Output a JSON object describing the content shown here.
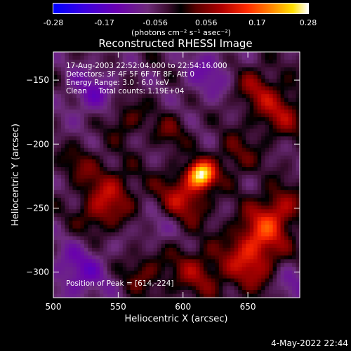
{
  "chart_data": {
    "type": "heatmap",
    "title": "Reconstructed RHESSI Image",
    "xlabel": "Heliocentric X (arcsec)",
    "ylabel": "Heliocentric Y (arcsec)",
    "xlim": [
      500,
      690
    ],
    "ylim": [
      -320,
      -128
    ],
    "x_ticks": [
      "500",
      "550",
      "600",
      "650"
    ],
    "y_ticks": [
      "-150",
      "-200",
      "-250",
      "-300"
    ],
    "colorbar": {
      "ticks": [
        "-0.28",
        "-0.17",
        "-0.056",
        "0.056",
        "0.17",
        "0.28"
      ],
      "range": [
        -0.28,
        0.28
      ],
      "unit_label": "(photons cm⁻² s⁻¹ asec⁻²)"
    },
    "annotations": [
      "17-Aug-2003 22:52:04.000 to 22:54:16.000",
      "Detectors: 3F 4F 5F 6F 7F 8F, Att 0",
      "Energy Range: 3.0 - 6.0 keV",
      "Clean     Total counts: 1.19E+04"
    ],
    "peak_label": "Position of Peak = [614,-224]",
    "peak": {
      "x": 614,
      "y": -224,
      "value": 0.28
    },
    "sources": [
      {
        "x": 614,
        "y": -224,
        "v": 0.28,
        "s": 7
      },
      {
        "x": 600,
        "y": -242,
        "v": 0.12,
        "s": 14
      },
      {
        "x": 545,
        "y": -235,
        "v": 0.09,
        "s": 14
      },
      {
        "x": 535,
        "y": -255,
        "v": 0.08,
        "s": 12
      },
      {
        "x": 520,
        "y": -215,
        "v": 0.06,
        "s": 10
      },
      {
        "x": 660,
        "y": -270,
        "v": 0.13,
        "s": 14
      },
      {
        "x": 675,
        "y": -250,
        "v": 0.1,
        "s": 12
      },
      {
        "x": 650,
        "y": -295,
        "v": 0.11,
        "s": 15
      },
      {
        "x": 610,
        "y": -300,
        "v": 0.09,
        "s": 14
      },
      {
        "x": 570,
        "y": -300,
        "v": 0.07,
        "s": 12
      },
      {
        "x": 675,
        "y": -175,
        "v": 0.1,
        "s": 14
      },
      {
        "x": 655,
        "y": -155,
        "v": 0.08,
        "s": 12
      },
      {
        "x": 640,
        "y": -210,
        "v": 0.07,
        "s": 12
      },
      {
        "x": 555,
        "y": -180,
        "v": 0.07,
        "s": 11
      },
      {
        "x": 590,
        "y": -190,
        "v": 0.06,
        "s": 10
      },
      {
        "x": 530,
        "y": -160,
        "v": -0.08,
        "s": 14
      },
      {
        "x": 620,
        "y": -145,
        "v": -0.07,
        "s": 14
      },
      {
        "x": 520,
        "y": -300,
        "v": -0.09,
        "s": 16
      },
      {
        "x": 580,
        "y": -265,
        "v": -0.05,
        "s": 10
      },
      {
        "x": 683,
        "y": -310,
        "v": -0.06,
        "s": 10
      }
    ]
  },
  "footer": {
    "date": "4-May-2022 22:44"
  }
}
